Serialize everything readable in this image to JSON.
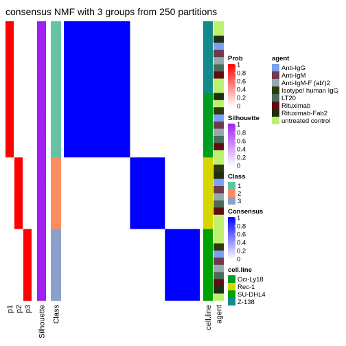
{
  "chart_data": {
    "type": "heatmap",
    "title": "consensus NMF with 3 groups from 250 partitions",
    "n_samples": 39,
    "left_annotations": [
      {
        "name": "p1",
        "label": "p1",
        "values": [
          1,
          1,
          1,
          1,
          1,
          1,
          1,
          1,
          1,
          1,
          1,
          1,
          1,
          1,
          1,
          1,
          1,
          1,
          1,
          0,
          0,
          0,
          0,
          0,
          0,
          0,
          0,
          0,
          0,
          0,
          0,
          0,
          0,
          0,
          0,
          0,
          0,
          0,
          0
        ]
      },
      {
        "name": "p2",
        "label": "p2",
        "values": [
          0,
          0,
          0,
          0,
          0,
          0,
          0,
          0,
          0,
          0,
          0,
          0,
          0,
          0,
          0,
          0,
          0,
          0,
          0,
          1,
          1,
          1,
          1,
          1,
          1,
          1,
          1,
          1,
          1,
          0,
          0,
          0,
          0,
          0,
          0,
          0,
          0,
          0,
          0
        ]
      },
      {
        "name": "p3",
        "label": "p3",
        "values": [
          0,
          0,
          0,
          0,
          0,
          0,
          0,
          0,
          0,
          0,
          0,
          0,
          0,
          0,
          0,
          0,
          0,
          0,
          0,
          0,
          0,
          0,
          0,
          0,
          0,
          0,
          0,
          0,
          0,
          1,
          1,
          1,
          1,
          1,
          1,
          1,
          1,
          1,
          1
        ]
      },
      {
        "name": "silhouette",
        "label": "Silhouette",
        "values": [
          1,
          1,
          1,
          1,
          1,
          1,
          1,
          1,
          1,
          1,
          1,
          1,
          1,
          1,
          1,
          1,
          1,
          1,
          1,
          1,
          1,
          1,
          1,
          1,
          1,
          1,
          1,
          1,
          1,
          1,
          1,
          1,
          1,
          1,
          1,
          1,
          1,
          1,
          1
        ]
      },
      {
        "name": "class",
        "label": "Class",
        "values": [
          1,
          1,
          1,
          1,
          1,
          1,
          1,
          1,
          1,
          1,
          1,
          1,
          1,
          1,
          1,
          1,
          1,
          1,
          1,
          2,
          2,
          2,
          2,
          2,
          2,
          2,
          2,
          2,
          2,
          3,
          3,
          3,
          3,
          3,
          3,
          3,
          3,
          3,
          3
        ]
      }
    ],
    "consensus_blocks": [
      {
        "class": 1,
        "size": 19,
        "value": 1
      },
      {
        "class": 2,
        "size": 10,
        "value": 1
      },
      {
        "class": 3,
        "size": 10,
        "value": 1
      }
    ],
    "right_annotations": [
      {
        "name": "cell_line",
        "label": "cell.line",
        "values": [
          "Z-138",
          "Z-138",
          "Z-138",
          "Z-138",
          "Z-138",
          "Z-138",
          "Z-138",
          "Z-138",
          "Z-138",
          "Z-138",
          "Oci-Ly18",
          "Oci-Ly18",
          "Oci-Ly18",
          "Oci-Ly18",
          "Oci-Ly18",
          "Oci-Ly18",
          "Oci-Ly18",
          "Oci-Ly18",
          "Oci-Ly18",
          "Rec-1",
          "Rec-1",
          "Rec-1",
          "Rec-1",
          "Rec-1",
          "Rec-1",
          "Rec-1",
          "Rec-1",
          "Rec-1",
          "Rec-1",
          "SU-DHL4",
          "SU-DHL4",
          "SU-DHL4",
          "SU-DHL4",
          "SU-DHL4",
          "SU-DHL4",
          "SU-DHL4",
          "SU-DHL4",
          "SU-DHL4",
          "SU-DHL4"
        ]
      },
      {
        "name": "agent",
        "label": "agent",
        "values": [
          "untreated control",
          "untreated control",
          "Rituximab-Fab2",
          "Anti-IgG",
          "Anti-IgM",
          "Anti-IgM-F (ab')2",
          "LT20",
          "Rituximab",
          "untreated control",
          "untreated control",
          "Rituximab-Fab2",
          "untreated control",
          "Isotype/ human IgG",
          "Anti-IgG",
          "Anti-IgM",
          "Anti-IgM-F (ab')2",
          "LT20",
          "Rituximab",
          "untreated control",
          "untreated control",
          "Isotype/ human IgG",
          "Rituximab-Fab2",
          "Anti-IgG",
          "Anti-IgM",
          "Anti-IgM-F (ab')2",
          "LT20",
          "Rituximab",
          "untreated control",
          "untreated control",
          "untreated control",
          "untreated control",
          "Isotype/ human IgG",
          "Anti-IgG",
          "Anti-IgM",
          "Anti-IgM-F (ab')2",
          "LT20",
          "Rituximab",
          "Rituximab-Fab2",
          "untreated control"
        ]
      }
    ],
    "legends": {
      "prob": {
        "title": "Prob",
        "ticks": [
          "1",
          "0.8",
          "0.6",
          "0.4",
          "0.2",
          "0"
        ],
        "color_low": "#ffffff",
        "color_high": "#ff0000"
      },
      "silhouette": {
        "title": "Silhouette",
        "ticks": [
          "1",
          "0.8",
          "0.6",
          "0.4",
          "0.2",
          "0"
        ],
        "color_low": "#ffffff",
        "color_high": "#a020f0"
      },
      "class": {
        "title": "Class",
        "entries": [
          {
            "label": "1",
            "color": "#66c2a5"
          },
          {
            "label": "2",
            "color": "#fc8d62"
          },
          {
            "label": "3",
            "color": "#8da0cb"
          }
        ]
      },
      "consensus": {
        "title": "Consensus",
        "ticks": [
          "1",
          "0.8",
          "0.6",
          "0.4",
          "0.2",
          "0"
        ],
        "color_low": "#ffffff",
        "color_high": "#0000ff"
      },
      "cell_line": {
        "title": "cell.line",
        "entries": [
          {
            "label": "Oci-Ly18",
            "color": "#009e20"
          },
          {
            "label": "Rec-1",
            "color": "#d6d600"
          },
          {
            "label": "SU-DHL4",
            "color": "#00a000"
          },
          {
            "label": "Z-138",
            "color": "#138a8a"
          }
        ]
      },
      "agent": {
        "title": "agent",
        "entries": [
          {
            "label": "Anti-IgG",
            "color": "#7b9ff2"
          },
          {
            "label": "Anti-IgM",
            "color": "#6e3a4e"
          },
          {
            "label": "Anti-IgM-F (ab')2",
            "color": "#93a9ae"
          },
          {
            "label": "Isotype/ human IgG",
            "color": "#2e3a0c"
          },
          {
            "label": "LT20",
            "color": "#4c6b5a"
          },
          {
            "label": "Rituximab",
            "color": "#5e0e0e"
          },
          {
            "label": "Rituximab-Fab2",
            "color": "#1e2e14"
          },
          {
            "label": "untreated control",
            "color": "#bdf06e"
          }
        ]
      }
    }
  }
}
